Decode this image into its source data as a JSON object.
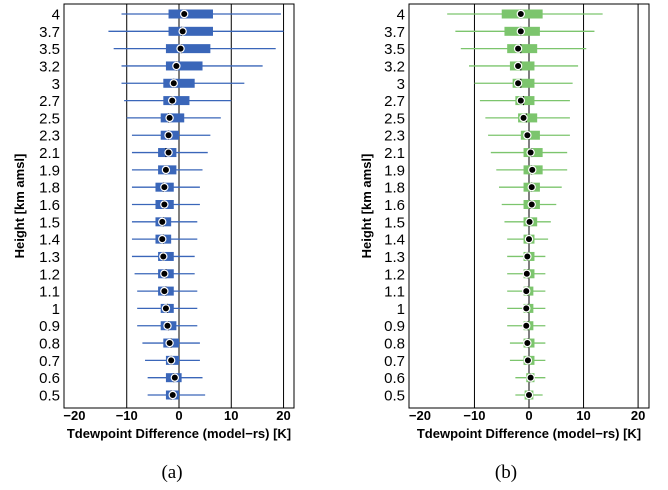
{
  "chart_data": [
    {
      "type": "boxplot",
      "panel_caption": "(a)",
      "xlabel": "Tdewpoint Difference (model−rs) [K]",
      "ylabel": "Height [km amsl]",
      "xlim": [
        -22,
        22
      ],
      "xticks": [
        -20,
        -10,
        0,
        10,
        20
      ],
      "xtick_labels": [
        "−20",
        "−10",
        "0",
        "10",
        "20"
      ],
      "vlines": [
        -10,
        0,
        10,
        20
      ],
      "color": "#3a66b9",
      "categories": [
        "0.5",
        "0.6",
        "0.7",
        "0.8",
        "0.9",
        "1",
        "1.1",
        "1.2",
        "1.3",
        "1.4",
        "1.5",
        "1.6",
        "1.8",
        "1.9",
        "2.1",
        "2.3",
        "2.5",
        "2.7",
        "3",
        "3.2",
        "3.5",
        "3.7",
        "4"
      ],
      "boxes": [
        {
          "wlo": -6,
          "q1": -2.5,
          "med": -1.5,
          "q3": 0,
          "whi": 5,
          "mean": -1.2
        },
        {
          "wlo": -6,
          "q1": -2.5,
          "med": -1.0,
          "q3": 0.5,
          "whi": 4.5,
          "mean": -0.8
        },
        {
          "wlo": -6.5,
          "q1": -2.5,
          "med": -1.5,
          "q3": 0,
          "whi": 4,
          "mean": -1.5
        },
        {
          "wlo": -7,
          "q1": -3,
          "med": -1.5,
          "q3": 0,
          "whi": 4,
          "mean": -1.8
        },
        {
          "wlo": -8,
          "q1": -3.5,
          "med": -2,
          "q3": -0.5,
          "whi": 3.5,
          "mean": -2.2
        },
        {
          "wlo": -8,
          "q1": -3.5,
          "med": -2.2,
          "q3": -1,
          "whi": 3.5,
          "mean": -2.5
        },
        {
          "wlo": -8,
          "q1": -4,
          "med": -2.5,
          "q3": -1,
          "whi": 3.5,
          "mean": -2.8
        },
        {
          "wlo": -8.5,
          "q1": -4,
          "med": -2.5,
          "q3": -1,
          "whi": 3,
          "mean": -2.8
        },
        {
          "wlo": -9,
          "q1": -4,
          "med": -3,
          "q3": -1,
          "whi": 3,
          "mean": -3.0
        },
        {
          "wlo": -9,
          "q1": -4.5,
          "med": -3,
          "q3": -1.5,
          "whi": 3.5,
          "mean": -3.2
        },
        {
          "wlo": -9,
          "q1": -4.5,
          "med": -3,
          "q3": -1.5,
          "whi": 3.5,
          "mean": -3.2
        },
        {
          "wlo": -9,
          "q1": -4.5,
          "med": -3,
          "q3": -1,
          "whi": 4,
          "mean": -2.8
        },
        {
          "wlo": -9,
          "q1": -4.5,
          "med": -3,
          "q3": -1,
          "whi": 4,
          "mean": -2.8
        },
        {
          "wlo": -9,
          "q1": -4,
          "med": -2.5,
          "q3": -0.5,
          "whi": 4.5,
          "mean": -2.5
        },
        {
          "wlo": -9,
          "q1": -4,
          "med": -2.5,
          "q3": -0.5,
          "whi": 5.5,
          "mean": -2.0
        },
        {
          "wlo": -9,
          "q1": -3.5,
          "med": -2,
          "q3": 0,
          "whi": 6,
          "mean": -2.0
        },
        {
          "wlo": -10,
          "q1": -3.5,
          "med": -2,
          "q3": 1,
          "whi": 8,
          "mean": -1.8
        },
        {
          "wlo": -10.5,
          "q1": -3,
          "med": -1.5,
          "q3": 2,
          "whi": 10,
          "mean": -1.3
        },
        {
          "wlo": -11,
          "q1": -3,
          "med": -1,
          "q3": 3,
          "whi": 12.5,
          "mean": -1.0
        },
        {
          "wlo": -11,
          "q1": -2.5,
          "med": -0.5,
          "q3": 4.5,
          "whi": 16,
          "mean": -0.5
        },
        {
          "wlo": -12.5,
          "q1": -2.5,
          "med": 0.5,
          "q3": 6,
          "whi": 18.5,
          "mean": 0.3
        },
        {
          "wlo": -13.5,
          "q1": -2,
          "med": 0.5,
          "q3": 6.5,
          "whi": 20,
          "mean": 0.7
        },
        {
          "wlo": -11,
          "q1": -2,
          "med": 1,
          "q3": 6.5,
          "whi": 19.5,
          "mean": 1.0
        }
      ]
    },
    {
      "type": "boxplot",
      "panel_caption": "(b)",
      "xlabel": "Tdewpoint Difference (model−rs) [K]",
      "ylabel": "Height [km amsl]",
      "xlim": [
        -22,
        22
      ],
      "xticks": [
        -20,
        -10,
        0,
        10,
        20
      ],
      "xtick_labels": [
        "−20",
        "−10",
        "0",
        "10",
        "20"
      ],
      "vlines": [
        -10,
        0,
        10,
        20
      ],
      "color": "#7cc56d",
      "categories": [
        "0.5",
        "0.6",
        "0.7",
        "0.8",
        "0.9",
        "1",
        "1.1",
        "1.2",
        "1.3",
        "1.4",
        "1.5",
        "1.6",
        "1.8",
        "1.9",
        "2.1",
        "2.3",
        "2.5",
        "2.7",
        "3",
        "3.2",
        "3.5",
        "3.7",
        "4"
      ],
      "boxes": [
        {
          "wlo": -2.5,
          "q1": -0.8,
          "med": 0,
          "q3": 0.8,
          "whi": 2.5,
          "mean": 0.0
        },
        {
          "wlo": -2.5,
          "q1": -0.5,
          "med": 0.2,
          "q3": 1,
          "whi": 3,
          "mean": 0.3
        },
        {
          "wlo": -3.5,
          "q1": -1,
          "med": 0,
          "q3": 1,
          "whi": 3,
          "mean": -0.2
        },
        {
          "wlo": -3.5,
          "q1": -1,
          "med": -0.2,
          "q3": 1,
          "whi": 3,
          "mean": -0.3
        },
        {
          "wlo": -4,
          "q1": -1,
          "med": -0.2,
          "q3": 0.8,
          "whi": 3,
          "mean": -0.5
        },
        {
          "wlo": -4,
          "q1": -1,
          "med": -0.2,
          "q3": 0.8,
          "whi": 3,
          "mean": -0.5
        },
        {
          "wlo": -4,
          "q1": -1,
          "med": -0.2,
          "q3": 0.8,
          "whi": 3,
          "mean": -0.5
        },
        {
          "wlo": -4,
          "q1": -1,
          "med": -0.2,
          "q3": 1,
          "whi": 3,
          "mean": -0.4
        },
        {
          "wlo": -4,
          "q1": -1,
          "med": -0.2,
          "q3": 1,
          "whi": 3,
          "mean": -0.3
        },
        {
          "wlo": -4,
          "q1": -1,
          "med": 0,
          "q3": 1,
          "whi": 3.5,
          "mean": 0.0
        },
        {
          "wlo": -4.5,
          "q1": -1,
          "med": 0,
          "q3": 1.5,
          "whi": 4,
          "mean": 0.1
        },
        {
          "wlo": -5,
          "q1": -1,
          "med": 0.2,
          "q3": 2,
          "whi": 5,
          "mean": 0.5
        },
        {
          "wlo": -5.5,
          "q1": -1,
          "med": 0.5,
          "q3": 2,
          "whi": 6,
          "mean": 0.5
        },
        {
          "wlo": -6,
          "q1": -1,
          "med": 0.5,
          "q3": 2.5,
          "whi": 7,
          "mean": 0.6
        },
        {
          "wlo": -7,
          "q1": -1,
          "med": 0.5,
          "q3": 2.5,
          "whi": 7,
          "mean": 0.3
        },
        {
          "wlo": -7.5,
          "q1": -1.5,
          "med": 0,
          "q3": 2,
          "whi": 7.5,
          "mean": -0.3
        },
        {
          "wlo": -8,
          "q1": -2,
          "med": -0.5,
          "q3": 1.5,
          "whi": 7.5,
          "mean": -1.0
        },
        {
          "wlo": -9,
          "q1": -2.5,
          "med": -1,
          "q3": 1,
          "whi": 7.5,
          "mean": -1.5
        },
        {
          "wlo": -10,
          "q1": -3,
          "med": -1.5,
          "q3": 1,
          "whi": 8,
          "mean": -2.0
        },
        {
          "wlo": -11,
          "q1": -3.5,
          "med": -1.5,
          "q3": 1,
          "whi": 9,
          "mean": -2.0
        },
        {
          "wlo": -12.5,
          "q1": -4,
          "med": -1.5,
          "q3": 1.5,
          "whi": 10.5,
          "mean": -2.0
        },
        {
          "wlo": -13.5,
          "q1": -4.5,
          "med": -1.5,
          "q3": 2,
          "whi": 12,
          "mean": -1.5
        },
        {
          "wlo": -15,
          "q1": -5,
          "med": -1.5,
          "q3": 2.5,
          "whi": 13.5,
          "mean": -1.5
        }
      ]
    }
  ]
}
